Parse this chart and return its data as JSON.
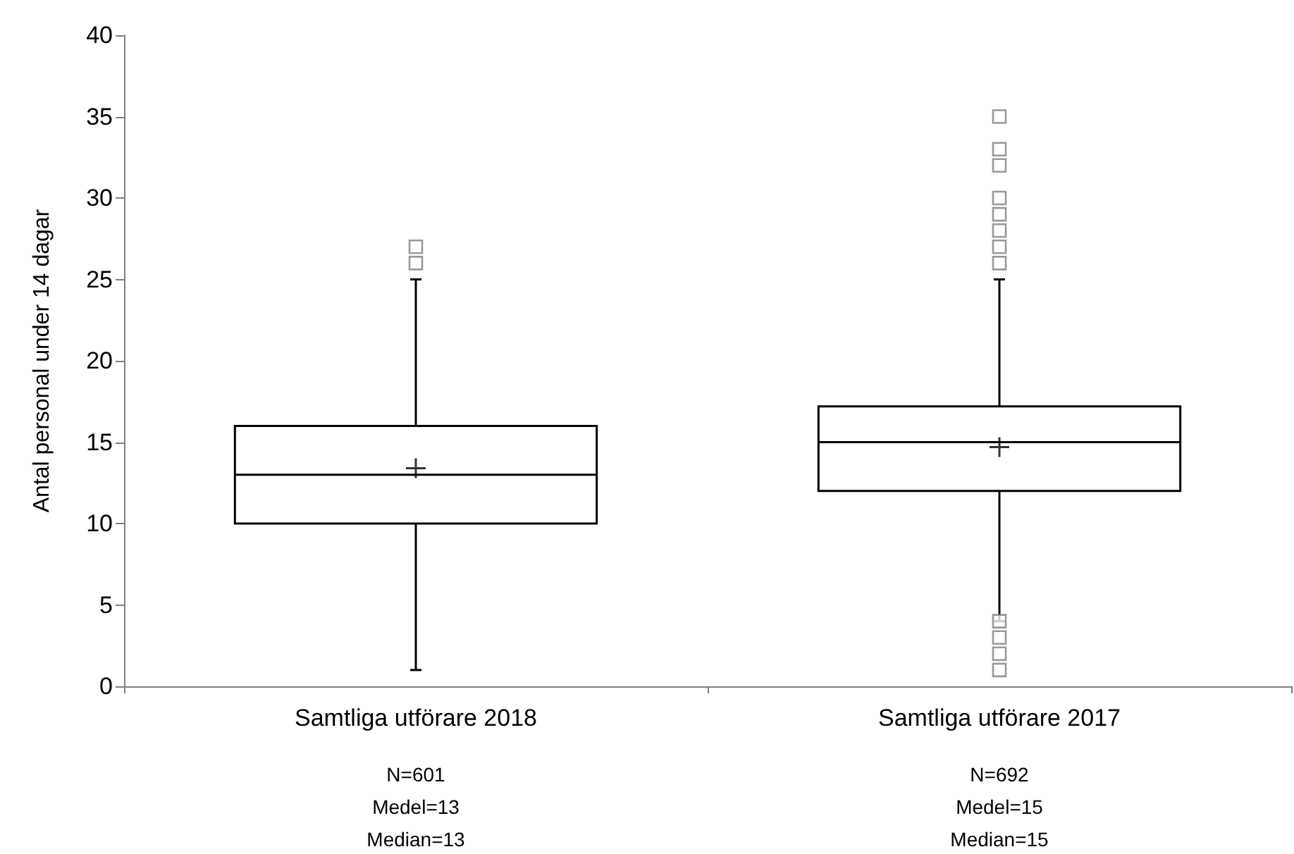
{
  "chart_data": {
    "type": "box",
    "ylabel": "Antal personal under 14 dagar",
    "categories": [
      "Samtliga utförare 2018",
      "Samtliga utförare 2017"
    ],
    "boxes": [
      {
        "low": 1,
        "q1": 10,
        "median": 13,
        "q3": 16,
        "high": 25,
        "mean": 13.4,
        "outliers": [
          26,
          27
        ]
      },
      {
        "low": 4,
        "q1": 12,
        "median": 15,
        "q3": 17.2,
        "high": 25,
        "mean": 14.7,
        "outliers": [
          26,
          27,
          28,
          29,
          30,
          32,
          33,
          35,
          1,
          2,
          3,
          4
        ]
      }
    ],
    "color": "#000000",
    "marker": "square",
    "ylim": [
      0,
      40
    ],
    "yticks": [
      0,
      5,
      10,
      15,
      20,
      25,
      30,
      35,
      40
    ],
    "grid": false,
    "annotations": [
      "N=601\nMedel=13\nMedian=13",
      "N=692\nMedel=15\nMedian=15"
    ]
  }
}
